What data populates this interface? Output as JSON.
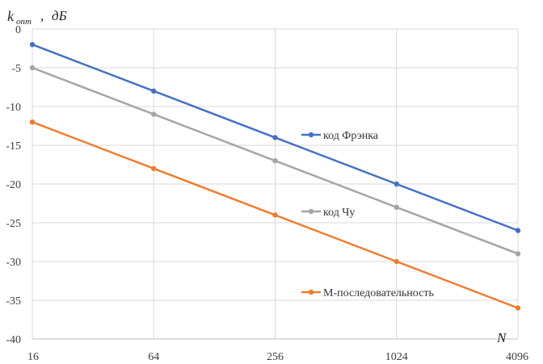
{
  "chart_data": {
    "type": "line",
    "x_scale": "log2",
    "categories": [
      "16",
      "64",
      "256",
      "1024",
      "4096"
    ],
    "x": [
      16,
      64,
      256,
      1024,
      4096
    ],
    "ylim": [
      -40,
      0
    ],
    "yticks": [
      0,
      -5,
      -10,
      -15,
      -20,
      -25,
      -30,
      -35,
      -40
    ],
    "grid": true,
    "xlabel": "N",
    "ylabel": {
      "main": "k",
      "sub": "опт",
      "sep": ",",
      "unit": "дБ"
    },
    "series": [
      {
        "name": "код Фрэнка",
        "color": "#4472C4",
        "values": [
          -2,
          -8,
          -14,
          -20,
          -26
        ]
      },
      {
        "name": "код Чу",
        "color": "#A5A5A5",
        "values": [
          -5,
          -11,
          -17,
          -23,
          -29
        ]
      },
      {
        "name": "М-последовательность",
        "color": "#ED7D31",
        "values": [
          -12,
          -18,
          -24,
          -30,
          -36
        ]
      }
    ]
  }
}
